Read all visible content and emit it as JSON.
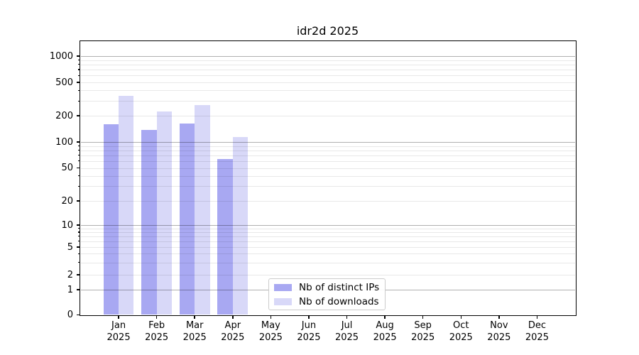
{
  "chart_data": {
    "type": "bar",
    "title": "idr2d 2025",
    "x_categories": [
      "Jan",
      "Feb",
      "Mar",
      "Apr",
      "May",
      "Jun",
      "Jul",
      "Aug",
      "Sep",
      "Oct",
      "Nov",
      "Dec"
    ],
    "x_year_suffix": "2025",
    "series": [
      {
        "name": "Nb of distinct IPs",
        "color": "#a8a8f2",
        "values": [
          160,
          138,
          164,
          63,
          0,
          0,
          0,
          0,
          0,
          0,
          0,
          0
        ]
      },
      {
        "name": "Nb of downloads",
        "color": "#d8d8f8",
        "values": [
          345,
          227,
          270,
          113,
          0,
          0,
          0,
          0,
          0,
          0,
          0,
          0
        ]
      }
    ],
    "y_ticks": [
      0,
      1,
      2,
      5,
      10,
      20,
      50,
      100,
      200,
      500,
      1000
    ],
    "y_scale": "symlog",
    "grid": true,
    "legend_position": "lower center",
    "colors": {
      "major_grid": "#b0b0b0",
      "minor_grid": "#e8e8e8",
      "axis": "#000000",
      "background": "#ffffff"
    }
  }
}
